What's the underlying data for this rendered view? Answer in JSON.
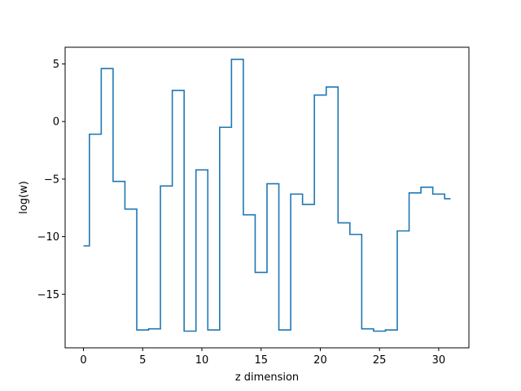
{
  "chart_data": {
    "type": "line",
    "drawstyle": "steps-mid",
    "title": "",
    "xlabel": "z dimension",
    "ylabel": "log(w)",
    "xlim": [
      -1.55,
      32.55
    ],
    "ylim": [
      -19.65,
      6.45
    ],
    "xticks": [
      0,
      5,
      10,
      15,
      20,
      25,
      30
    ],
    "xtick_labels": [
      "0",
      "5",
      "10",
      "15",
      "20",
      "25",
      "30"
    ],
    "yticks": [
      -15,
      -10,
      -5,
      0,
      5
    ],
    "ytick_labels": [
      "−15",
      "−10",
      "−5",
      "0",
      "5"
    ],
    "grid": false,
    "legend": "none",
    "series": [
      {
        "color": "#1f77b4",
        "x": [
          0,
          1,
          2,
          3,
          4,
          5,
          6,
          7,
          8,
          9,
          10,
          11,
          12,
          13,
          14,
          15,
          16,
          17,
          18,
          19,
          20,
          21,
          22,
          23,
          24,
          25,
          26,
          27,
          28,
          29,
          30,
          31
        ],
        "y": [
          -10.8,
          -1.1,
          4.6,
          -5.2,
          -7.6,
          -18.1,
          -18.0,
          -5.6,
          2.7,
          -18.2,
          -4.2,
          -18.1,
          -0.5,
          5.4,
          -8.1,
          -13.1,
          -5.4,
          -18.1,
          -6.3,
          -7.2,
          2.3,
          3.0,
          -8.8,
          -9.8,
          -18.0,
          -18.2,
          -18.1,
          -9.5,
          -6.2,
          -5.7,
          -6.3,
          -6.7
        ]
      }
    ]
  }
}
